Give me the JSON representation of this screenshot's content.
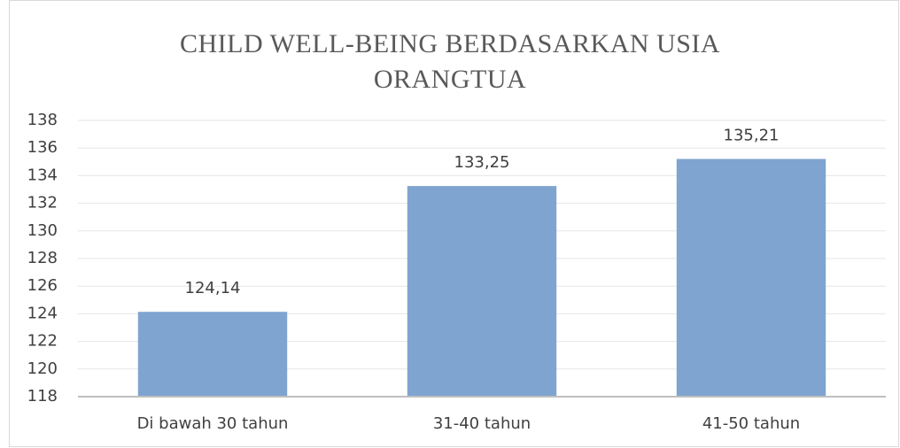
{
  "chart_data": {
    "type": "bar",
    "title": "CHILD WELL-BEING BERDASARKAN USIA ORANGTUA",
    "categories": [
      "Di bawah 30 tahun",
      "31-40 tahun",
      "41-50 tahun"
    ],
    "values": [
      124.14,
      133.25,
      135.21
    ],
    "value_labels": [
      "124,14",
      "133,25",
      "135,21"
    ],
    "color": "#7fa4d0",
    "ylim": [
      118,
      138
    ],
    "yticks": [
      118,
      120,
      122,
      124,
      126,
      128,
      130,
      132,
      134,
      136,
      138
    ],
    "grid": true
  }
}
